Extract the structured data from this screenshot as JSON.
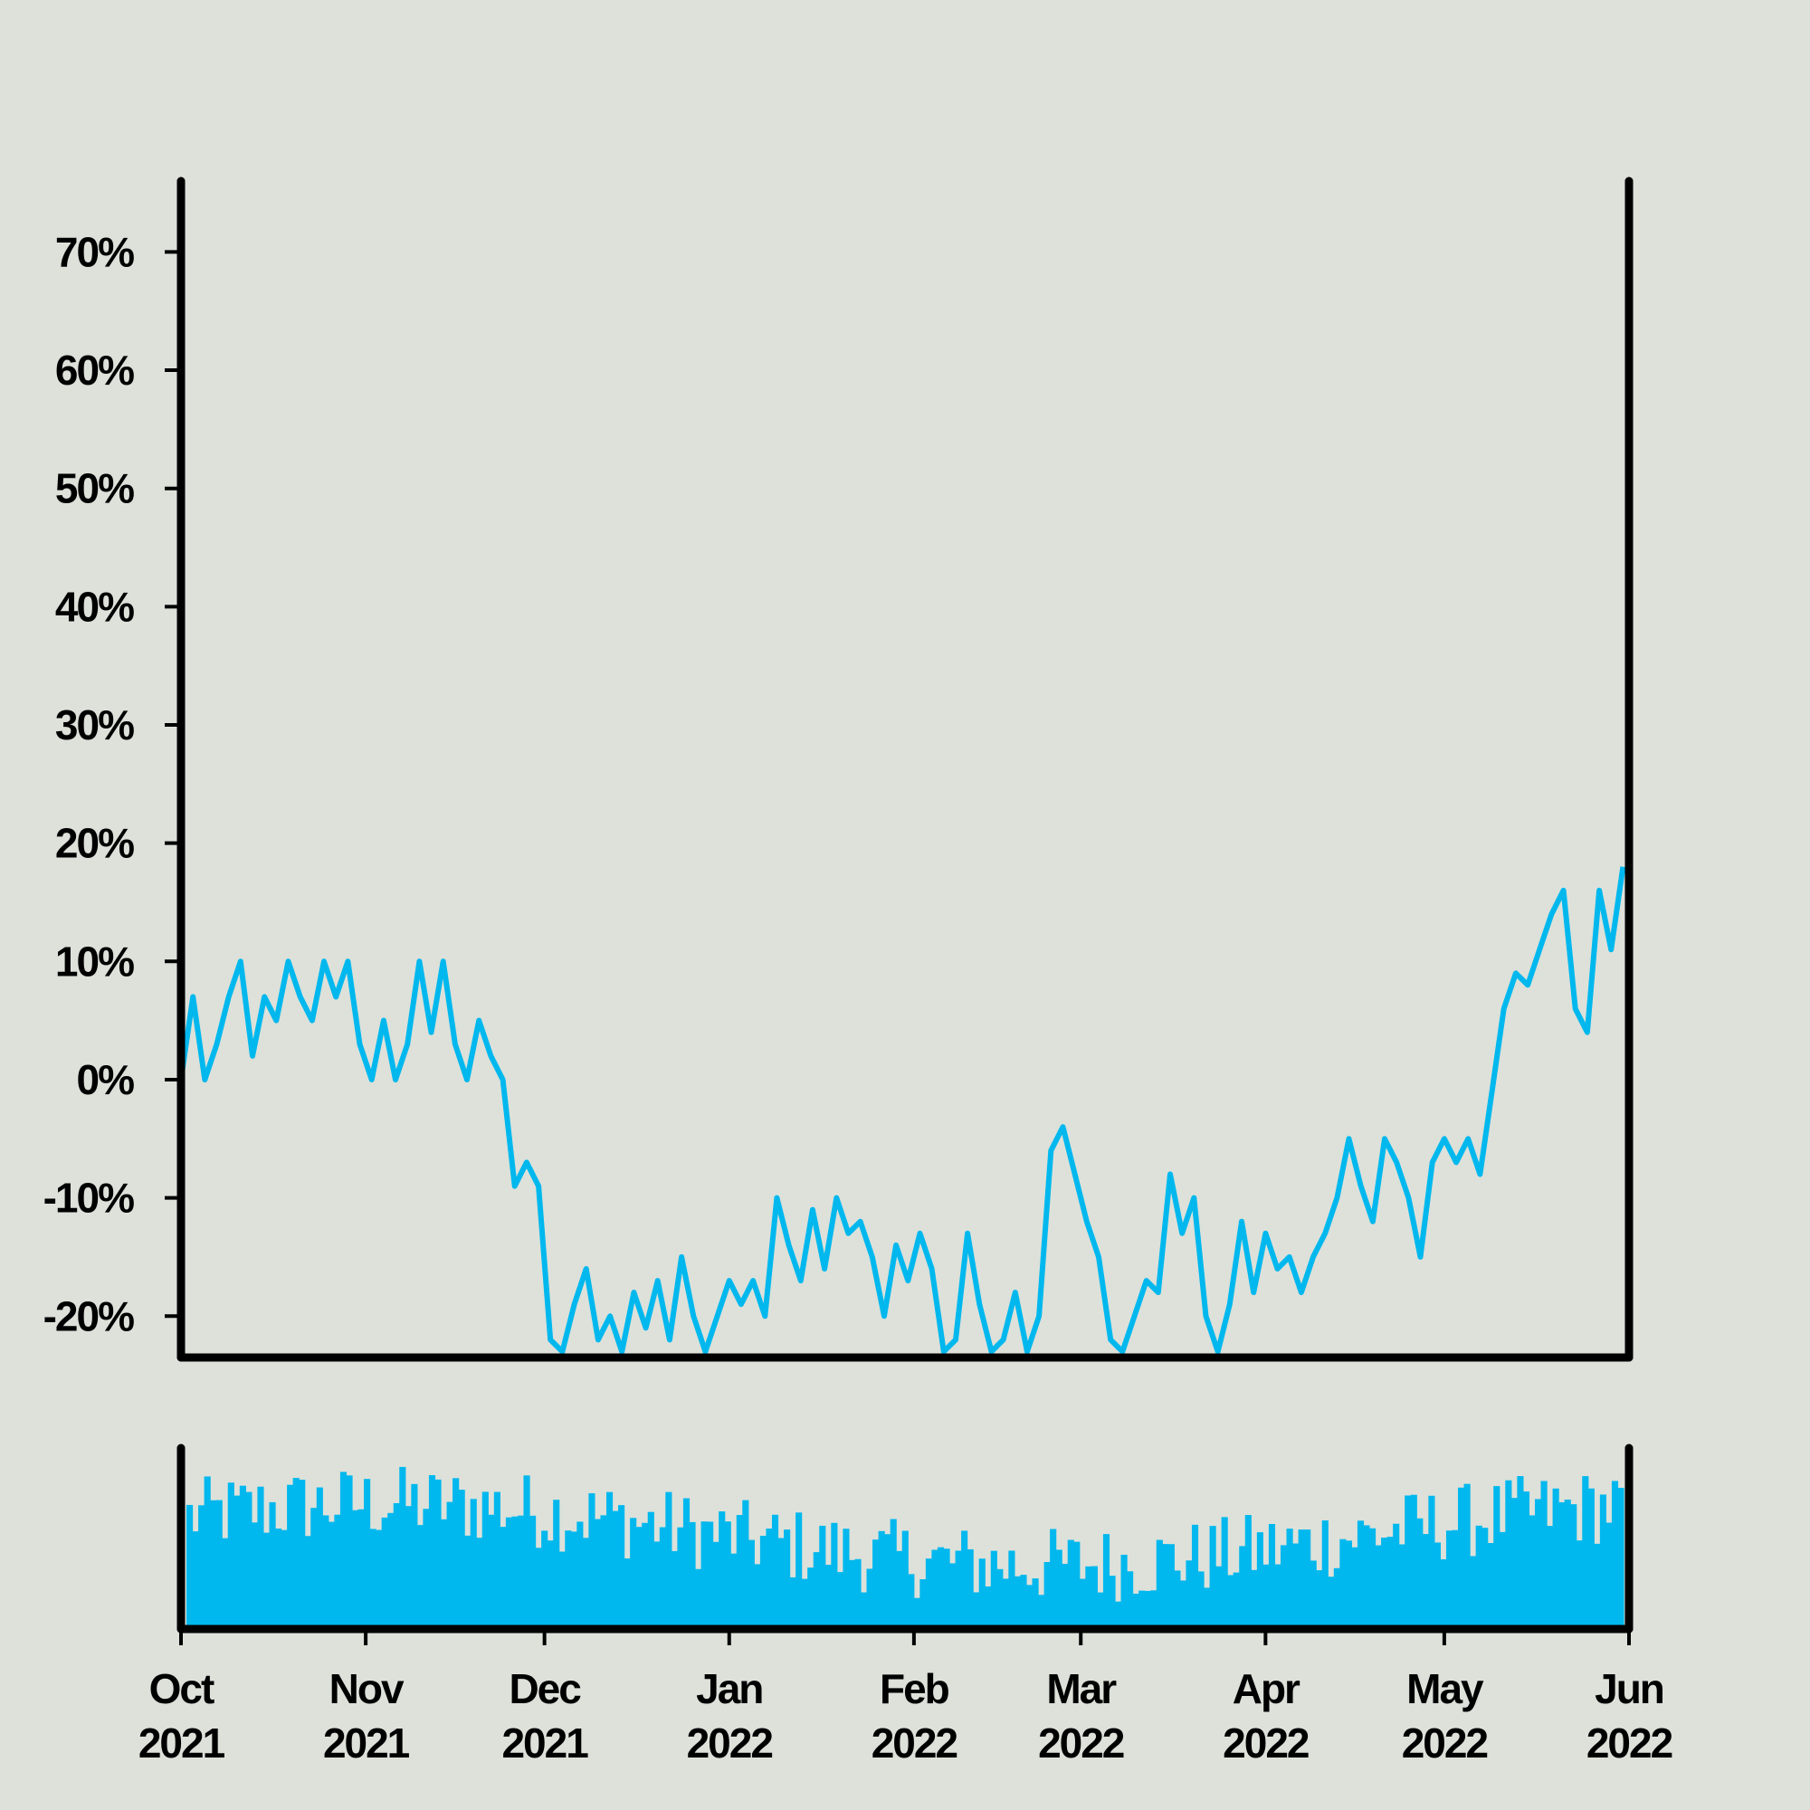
{
  "chart_data": {
    "type": "line",
    "colors": {
      "series": "#00b8ee",
      "background": "#dde1da",
      "axis": "#000000"
    },
    "price_panel": {
      "ylim": [
        -23.5,
        76
      ],
      "y_ticks": [
        70,
        60,
        50,
        40,
        30,
        20,
        10,
        0,
        -10,
        -20
      ],
      "y_tick_labels": [
        "70%",
        "60%",
        "50%",
        "40%",
        "30%",
        "20%",
        "10%",
        "0%",
        "-10%",
        "-20%"
      ],
      "grid": false
    },
    "volume_panel": {
      "type": "bar",
      "ylim": [
        0,
        100
      ],
      "grid": false
    },
    "x_axis": {
      "range": [
        "2021-10-01",
        "2022-06-01"
      ],
      "ticks": [
        "2021-10-01",
        "2021-11-01",
        "2021-12-01",
        "2022-01-01",
        "2022-02-01",
        "2022-03-01",
        "2022-04-01",
        "2022-05-01",
        "2022-06-01"
      ],
      "tick_labels": [
        [
          "Oct",
          "2021"
        ],
        [
          "Nov",
          "2021"
        ],
        [
          "Dec",
          "2021"
        ],
        [
          "Jan",
          "2022"
        ],
        [
          "Feb",
          "2022"
        ],
        [
          "Mar",
          "2022"
        ],
        [
          "Apr",
          "2022"
        ],
        [
          "May",
          "2022"
        ],
        [
          "Jun",
          "2022"
        ]
      ]
    },
    "series": [
      {
        "points": [
          [
            "2021-10-01",
            0
          ],
          [
            "2021-10-03",
            7
          ],
          [
            "2021-10-05",
            0
          ],
          [
            "2021-10-07",
            3
          ],
          [
            "2021-10-09",
            7
          ],
          [
            "2021-10-11",
            10
          ],
          [
            "2021-10-13",
            2
          ],
          [
            "2021-10-15",
            7
          ],
          [
            "2021-10-17",
            5
          ],
          [
            "2021-10-19",
            10
          ],
          [
            "2021-10-21",
            7
          ],
          [
            "2021-10-23",
            5
          ],
          [
            "2021-10-25",
            10
          ],
          [
            "2021-10-27",
            7
          ],
          [
            "2021-10-29",
            10
          ],
          [
            "2021-10-31",
            3
          ],
          [
            "2021-11-02",
            0
          ],
          [
            "2021-11-04",
            5
          ],
          [
            "2021-11-06",
            0
          ],
          [
            "2021-11-08",
            3
          ],
          [
            "2021-11-10",
            10
          ],
          [
            "2021-11-12",
            4
          ],
          [
            "2021-11-14",
            10
          ],
          [
            "2021-11-16",
            3
          ],
          [
            "2021-11-18",
            0
          ],
          [
            "2021-11-20",
            5
          ],
          [
            "2021-11-22",
            2
          ],
          [
            "2021-11-24",
            0
          ],
          [
            "2021-11-26",
            -9
          ],
          [
            "2021-11-28",
            -7
          ],
          [
            "2021-11-30",
            -9
          ],
          [
            "2021-12-02",
            -22
          ],
          [
            "2021-12-04",
            -23
          ],
          [
            "2021-12-06",
            -19
          ],
          [
            "2021-12-08",
            -16
          ],
          [
            "2021-12-10",
            -22
          ],
          [
            "2021-12-12",
            -20
          ],
          [
            "2021-12-14",
            -23
          ],
          [
            "2021-12-16",
            -18
          ],
          [
            "2021-12-18",
            -21
          ],
          [
            "2021-12-20",
            -17
          ],
          [
            "2021-12-22",
            -22
          ],
          [
            "2021-12-24",
            -15
          ],
          [
            "2021-12-26",
            -20
          ],
          [
            "2021-12-28",
            -23
          ],
          [
            "2021-12-30",
            -20
          ],
          [
            "2022-01-01",
            -17
          ],
          [
            "2022-01-03",
            -19
          ],
          [
            "2022-01-05",
            -17
          ],
          [
            "2022-01-07",
            -20
          ],
          [
            "2022-01-09",
            -10
          ],
          [
            "2022-01-11",
            -14
          ],
          [
            "2022-01-13",
            -17
          ],
          [
            "2022-01-15",
            -11
          ],
          [
            "2022-01-17",
            -16
          ],
          [
            "2022-01-19",
            -10
          ],
          [
            "2022-01-21",
            -13
          ],
          [
            "2022-01-23",
            -12
          ],
          [
            "2022-01-25",
            -15
          ],
          [
            "2022-01-27",
            -20
          ],
          [
            "2022-01-29",
            -14
          ],
          [
            "2022-01-31",
            -17
          ],
          [
            "2022-02-02",
            -13
          ],
          [
            "2022-02-04",
            -16
          ],
          [
            "2022-02-06",
            -23
          ],
          [
            "2022-02-08",
            -22
          ],
          [
            "2022-02-10",
            -13
          ],
          [
            "2022-02-12",
            -19
          ],
          [
            "2022-02-14",
            -23
          ],
          [
            "2022-02-16",
            -22
          ],
          [
            "2022-02-18",
            -18
          ],
          [
            "2022-02-20",
            -23
          ],
          [
            "2022-02-22",
            -20
          ],
          [
            "2022-02-24",
            -6
          ],
          [
            "2022-02-26",
            -4
          ],
          [
            "2022-02-28",
            -8
          ],
          [
            "2022-03-02",
            -12
          ],
          [
            "2022-03-04",
            -15
          ],
          [
            "2022-03-06",
            -22
          ],
          [
            "2022-03-08",
            -23
          ],
          [
            "2022-03-10",
            -20
          ],
          [
            "2022-03-12",
            -17
          ],
          [
            "2022-03-14",
            -18
          ],
          [
            "2022-03-16",
            -8
          ],
          [
            "2022-03-18",
            -13
          ],
          [
            "2022-03-20",
            -10
          ],
          [
            "2022-03-22",
            -20
          ],
          [
            "2022-03-24",
            -23
          ],
          [
            "2022-03-26",
            -19
          ],
          [
            "2022-03-28",
            -12
          ],
          [
            "2022-03-30",
            -18
          ],
          [
            "2022-04-01",
            -13
          ],
          [
            "2022-04-03",
            -16
          ],
          [
            "2022-04-05",
            -15
          ],
          [
            "2022-04-07",
            -18
          ],
          [
            "2022-04-09",
            -15
          ],
          [
            "2022-04-11",
            -13
          ],
          [
            "2022-04-13",
            -10
          ],
          [
            "2022-04-15",
            -5
          ],
          [
            "2022-04-17",
            -9
          ],
          [
            "2022-04-19",
            -12
          ],
          [
            "2022-04-21",
            -5
          ],
          [
            "2022-04-23",
            -7
          ],
          [
            "2022-04-25",
            -10
          ],
          [
            "2022-04-27",
            -15
          ],
          [
            "2022-04-29",
            -7
          ],
          [
            "2022-05-01",
            -5
          ],
          [
            "2022-05-03",
            -7
          ],
          [
            "2022-05-05",
            -5
          ],
          [
            "2022-05-07",
            -8
          ],
          [
            "2022-05-09",
            -1
          ],
          [
            "2022-05-11",
            6
          ],
          [
            "2022-05-13",
            9
          ],
          [
            "2022-05-15",
            8
          ],
          [
            "2022-05-17",
            11
          ],
          [
            "2022-05-19",
            14
          ],
          [
            "2022-05-21",
            16
          ],
          [
            "2022-05-23",
            6
          ],
          [
            "2022-05-25",
            4
          ],
          [
            "2022-05-27",
            16
          ],
          [
            "2022-05-29",
            11
          ],
          [
            "2022-05-31",
            18
          ]
        ]
      }
    ]
  }
}
